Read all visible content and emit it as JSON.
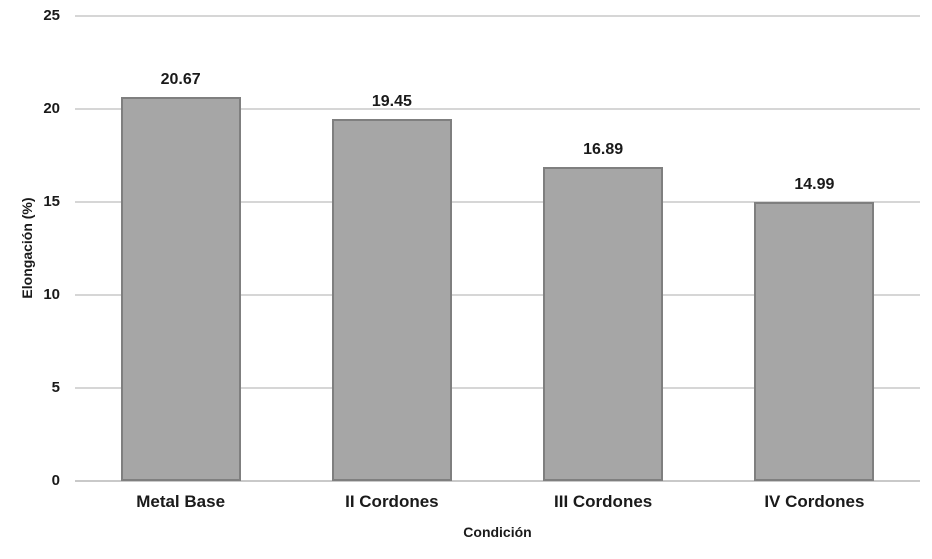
{
  "chart_data": {
    "type": "bar",
    "title": "",
    "categories": [
      "Metal Base",
      "II Cordones",
      "III Cordones",
      "IV Cordones"
    ],
    "values": [
      20.67,
      19.45,
      16.89,
      14.99
    ],
    "value_labels": [
      "20.67",
      "19.45",
      "16.89",
      "14.99"
    ],
    "xlabel": "Condición",
    "ylabel": "Elongación (%)",
    "ylim": [
      0,
      25
    ],
    "yticks": [
      0,
      5,
      10,
      15,
      20,
      25
    ],
    "grid": "horizontal",
    "legend": "none",
    "colors": {
      "bar_fill": "#a6a6a6",
      "bar_border": "#7f7f7f",
      "gridline": "#d6d6d6",
      "axis_line": "#c9c9c9",
      "text": "#1a1a1a",
      "background": "#ffffff"
    }
  }
}
